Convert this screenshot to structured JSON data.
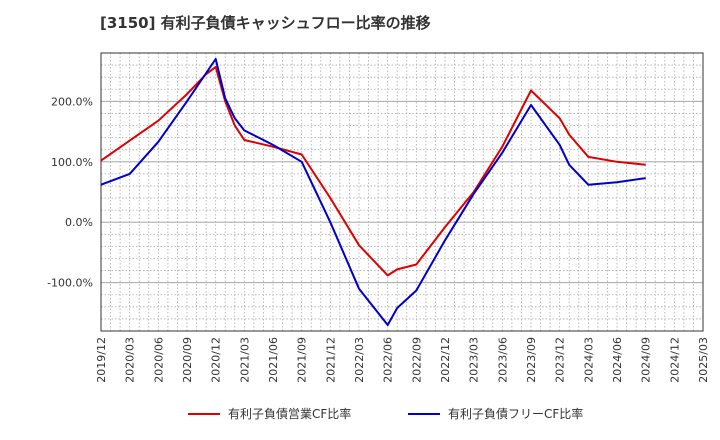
{
  "chart_data": {
    "type": "line",
    "title": "[3150]  有利子負債キャッシュフロー比率の推移",
    "x_ticks": [
      "2019/12",
      "2020/03",
      "2020/06",
      "2020/09",
      "2020/12",
      "2021/03",
      "2021/06",
      "2021/09",
      "2021/12",
      "2022/03",
      "2022/06",
      "2022/09",
      "2022/12",
      "2023/03",
      "2023/06",
      "2023/09",
      "2023/12",
      "2024/03",
      "2024/06",
      "2024/09",
      "2024/12",
      "2025/03"
    ],
    "y_ticks": [
      "-100.0%",
      "0.0%",
      "100.0%",
      "200.0%"
    ],
    "y_tick_values": [
      -100,
      0,
      100,
      200
    ],
    "x_range": [
      "2019/12",
      "2025/03"
    ],
    "ylim": [
      -180,
      280
    ],
    "grid": true,
    "legend_position": "bottom",
    "series": [
      {
        "name": "有利子負債営業CF比率",
        "color": "#dd0000",
        "points": [
          [
            "2019/12",
            102
          ],
          [
            "2020/03",
            135
          ],
          [
            "2020/06",
            168
          ],
          [
            "2020/09",
            212
          ],
          [
            "2020/11",
            245
          ],
          [
            "2020/12",
            257
          ],
          [
            "2021/01",
            200
          ],
          [
            "2021/02",
            160
          ],
          [
            "2021/03",
            136
          ],
          [
            "2021/06",
            125
          ],
          [
            "2021/09",
            112
          ],
          [
            "2021/12",
            40
          ],
          [
            "2022/03",
            -38
          ],
          [
            "2022/06",
            -88
          ],
          [
            "2022/07",
            -78
          ],
          [
            "2022/09",
            -70
          ],
          [
            "2022/12",
            -8
          ],
          [
            "2023/03",
            50
          ],
          [
            "2023/06",
            125
          ],
          [
            "2023/09",
            218
          ],
          [
            "2023/12",
            172
          ],
          [
            "2024/01",
            145
          ],
          [
            "2024/03",
            108
          ],
          [
            "2024/06",
            100
          ],
          [
            "2024/09",
            95
          ]
        ]
      },
      {
        "name": "有利子負債フリーCF比率",
        "color": "#0000cc",
        "points": [
          [
            "2019/12",
            62
          ],
          [
            "2020/03",
            80
          ],
          [
            "2020/06",
            133
          ],
          [
            "2020/09",
            200
          ],
          [
            "2020/12",
            270
          ],
          [
            "2021/01",
            205
          ],
          [
            "2021/02",
            172
          ],
          [
            "2021/03",
            152
          ],
          [
            "2021/06",
            128
          ],
          [
            "2021/09",
            100
          ],
          [
            "2021/12",
            0
          ],
          [
            "2022/03",
            -110
          ],
          [
            "2022/06",
            -170
          ],
          [
            "2022/07",
            -142
          ],
          [
            "2022/09",
            -113
          ],
          [
            "2022/12",
            -30
          ],
          [
            "2023/03",
            47
          ],
          [
            "2023/06",
            115
          ],
          [
            "2023/09",
            194
          ],
          [
            "2023/12",
            128
          ],
          [
            "2024/01",
            95
          ],
          [
            "2024/03",
            62
          ],
          [
            "2024/06",
            66
          ],
          [
            "2024/09",
            73
          ]
        ]
      }
    ]
  }
}
